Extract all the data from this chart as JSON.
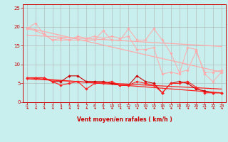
{
  "xlabel": "Vent moyen/en rafales ( km/h )",
  "x_ticks": [
    0,
    1,
    2,
    3,
    4,
    5,
    6,
    7,
    8,
    9,
    10,
    11,
    12,
    13,
    14,
    15,
    16,
    17,
    18,
    19,
    20,
    21,
    22,
    23
  ],
  "ylim": [
    0,
    26
  ],
  "yticks": [
    0,
    5,
    10,
    15,
    20,
    25
  ],
  "bg_color": "#c8eeee",
  "grid_color": "#b0b0b0",
  "pink_color": "#ffaaaa",
  "red_color": "#ff2222",
  "darkred_color": "#cc0000",
  "series_pink_y": [
    19.5,
    19.0,
    18.0,
    16.5,
    16.5,
    16.5,
    16.5,
    16.5,
    16.5,
    19.0,
    16.5,
    16.5,
    19.5,
    16.5,
    16.5,
    19.5,
    16.5,
    13.0,
    8.0,
    8.5,
    13.5,
    8.0,
    8.0,
    8.5
  ],
  "series_pink2_y": [
    19.5,
    21.0,
    18.0,
    16.5,
    17.0,
    16.5,
    17.5,
    17.0,
    17.5,
    17.0,
    17.5,
    17.0,
    17.5,
    14.0,
    14.0,
    14.5,
    7.5,
    8.0,
    7.5,
    14.5,
    14.0,
    7.5,
    5.5,
    8.0
  ],
  "reg_pink1_y_start": 19.8,
  "reg_pink1_y_end": 8.0,
  "reg_pink2_y_start": 17.8,
  "reg_pink2_y_end": 14.8,
  "series_red_y": [
    6.5,
    6.5,
    6.5,
    5.5,
    5.5,
    7.0,
    7.0,
    5.5,
    5.5,
    5.5,
    5.0,
    4.5,
    4.5,
    7.0,
    5.5,
    5.0,
    2.5,
    5.0,
    5.5,
    5.0,
    3.5,
    3.0,
    2.5,
    2.5
  ],
  "series_red2_y": [
    6.5,
    6.5,
    6.5,
    5.5,
    4.5,
    5.0,
    5.5,
    3.5,
    5.0,
    5.0,
    5.5,
    4.5,
    4.5,
    5.5,
    5.0,
    4.5,
    2.5,
    5.0,
    5.0,
    5.5,
    4.0,
    2.5,
    2.5,
    2.5
  ],
  "reg_red1_y_start": 6.5,
  "reg_red1_y_end": 2.5,
  "reg_red2_y_start": 6.2,
  "reg_red2_y_end": 3.5
}
